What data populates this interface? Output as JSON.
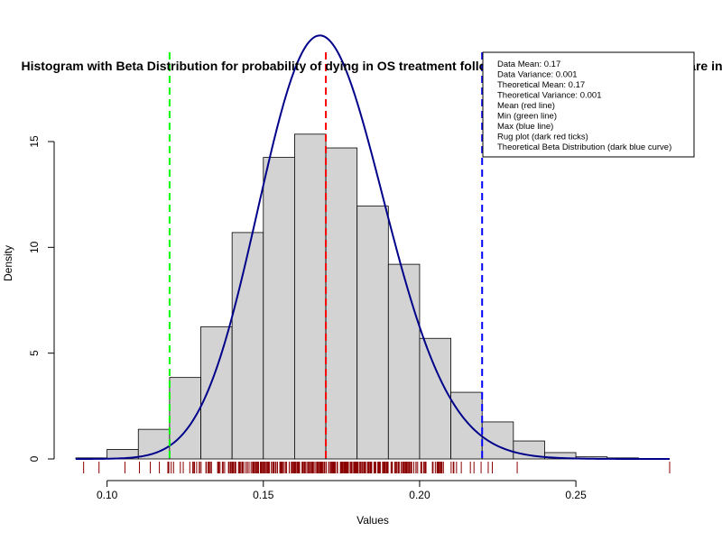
{
  "chart_data": {
    "type": "bar",
    "title": "Histogram with Beta Distribution for probability of dying in OS treatment following test test under standard of care in",
    "xlabel": "Values",
    "ylabel": "Density",
    "xlim": [
      0.09,
      0.28
    ],
    "ylim": [
      0,
      16
    ],
    "x_ticks": [
      0.1,
      0.15,
      0.2,
      0.25
    ],
    "x_tick_labels": [
      "0.10",
      "0.15",
      "0.20",
      "0.25"
    ],
    "y_ticks": [
      0,
      5,
      10,
      15
    ],
    "y_tick_labels": [
      "0",
      "5",
      "10",
      "15"
    ],
    "bins": [
      {
        "start": 0.09,
        "end": 0.1,
        "density": 0.05
      },
      {
        "start": 0.1,
        "end": 0.11,
        "density": 0.45
      },
      {
        "start": 0.11,
        "end": 0.12,
        "density": 1.4
      },
      {
        "start": 0.12,
        "end": 0.13,
        "density": 3.85
      },
      {
        "start": 0.13,
        "end": 0.14,
        "density": 6.25
      },
      {
        "start": 0.14,
        "end": 0.15,
        "density": 10.7
      },
      {
        "start": 0.15,
        "end": 0.16,
        "density": 14.25
      },
      {
        "start": 0.16,
        "end": 0.17,
        "density": 15.35
      },
      {
        "start": 0.17,
        "end": 0.18,
        "density": 14.7
      },
      {
        "start": 0.18,
        "end": 0.19,
        "density": 11.95
      },
      {
        "start": 0.19,
        "end": 0.2,
        "density": 9.2
      },
      {
        "start": 0.2,
        "end": 0.21,
        "density": 5.7
      },
      {
        "start": 0.21,
        "end": 0.22,
        "density": 3.15
      },
      {
        "start": 0.22,
        "end": 0.23,
        "density": 1.75
      },
      {
        "start": 0.23,
        "end": 0.24,
        "density": 0.85
      },
      {
        "start": 0.24,
        "end": 0.25,
        "density": 0.3
      },
      {
        "start": 0.25,
        "end": 0.26,
        "density": 0.1
      },
      {
        "start": 0.26,
        "end": 0.27,
        "density": 0.05
      }
    ],
    "beta_curve": {
      "alpha": 60,
      "beta": 293,
      "x_range": [
        0.09,
        0.28
      ],
      "color": "#00008b"
    },
    "vertical_lines": [
      {
        "label": "Mean",
        "x": 0.17,
        "color": "#ff0000"
      },
      {
        "label": "Min",
        "x": 0.12,
        "color": "#00ff00"
      },
      {
        "label": "Max",
        "x": 0.22,
        "color": "#0000ff"
      }
    ],
    "rug": {
      "color": "#8b0000",
      "min": 0.0925,
      "max": 0.28,
      "mean": 0.17,
      "sd": 0.0245,
      "count": 380
    },
    "legend": {
      "position": "top-right",
      "lines": [
        "Data Mean:  0.17",
        "Data Variance:  0.001",
        "Theoretical Mean:  0.17",
        "Theoretical Variance:  0.001",
        "Mean (red line)",
        "Min (green line)",
        "Max (blue line)",
        "Rug plot (dark red ticks)",
        "Theoretical Beta Distribution (dark blue curve)"
      ]
    },
    "colors": {
      "bar_fill": "#d3d3d3",
      "bar_stroke": "#000000"
    }
  }
}
